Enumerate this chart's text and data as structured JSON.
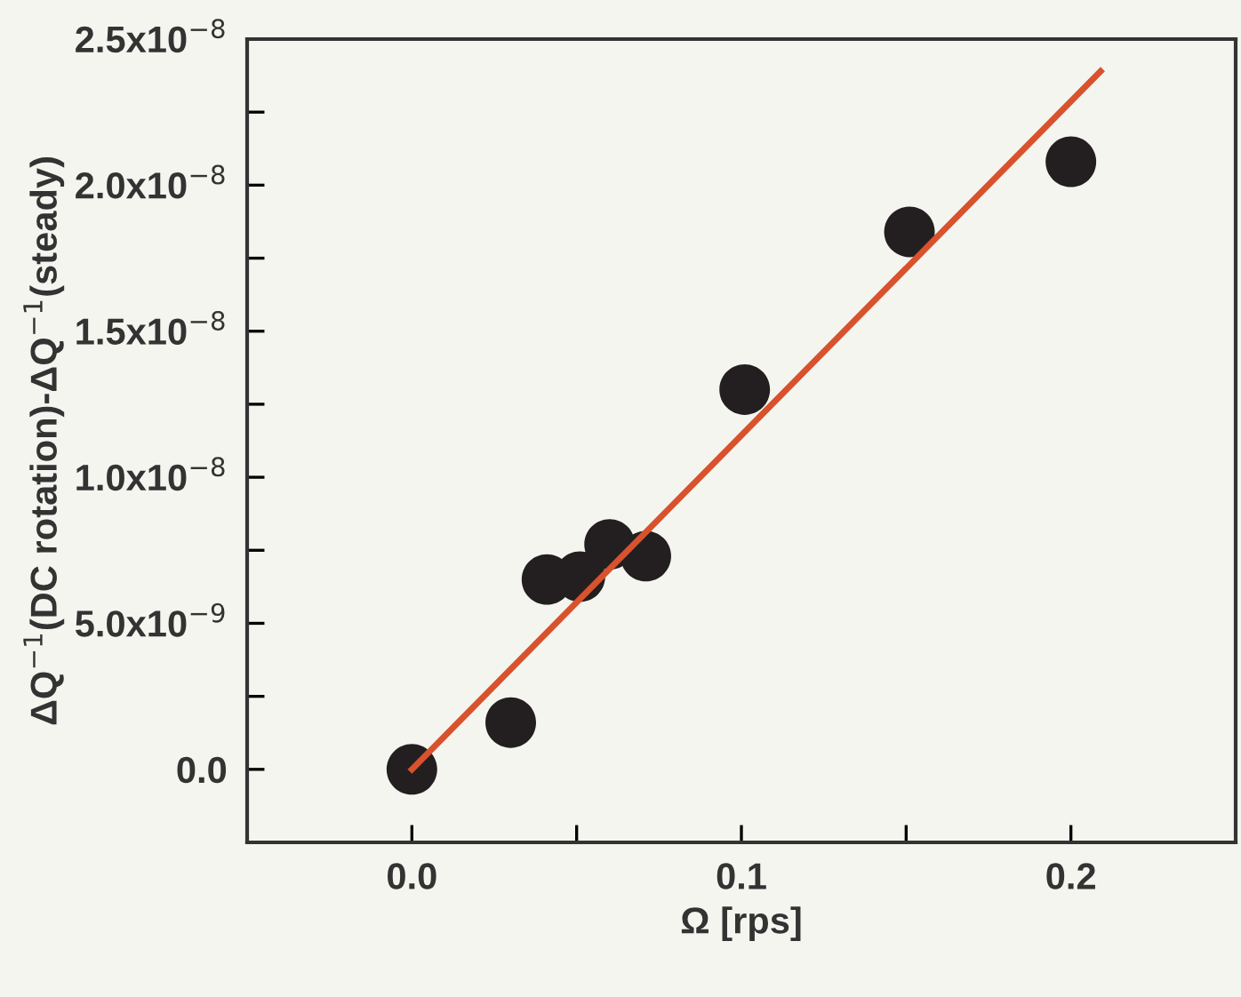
{
  "chart_data": {
    "type": "scatter",
    "xlabel": "Ω [rps]",
    "ylabel": "ΔQ$^{−1}$(DC rotation)-ΔQ$^{−1}$(steady)",
    "xlim": [
      -0.05,
      0.25
    ],
    "ylim": [
      -2.5e-09,
      2.5e-08
    ],
    "xticks": [
      {
        "value": 0.0,
        "label": "0.0"
      },
      {
        "value": 0.05,
        "label": null
      },
      {
        "value": 0.1,
        "label": "0.1"
      },
      {
        "value": 0.15,
        "label": null
      },
      {
        "value": 0.2,
        "label": "0.2"
      }
    ],
    "yticks": [
      {
        "value": 0.0,
        "label": "0.0"
      },
      {
        "value": 2.5e-09,
        "label": null
      },
      {
        "value": 5e-09,
        "label": "5.0x10$^{−9}$"
      },
      {
        "value": 7.5e-09,
        "label": null
      },
      {
        "value": 1e-08,
        "label": "1.0x10$^{−8}$"
      },
      {
        "value": 1.25e-08,
        "label": null
      },
      {
        "value": 1.5e-08,
        "label": "1.5x10$^{−8}$"
      },
      {
        "value": 1.75e-08,
        "label": null
      },
      {
        "value": 2e-08,
        "label": "2.0x10$^{−8}$"
      },
      {
        "value": 2.25e-08,
        "label": null
      },
      {
        "value": 2.5e-08,
        "label": "2.5x10$^{−8}$"
      }
    ],
    "grid": false,
    "series": [
      {
        "color": "#231f20",
        "marker": "circle",
        "x": [
          0.0,
          0.03,
          0.041,
          0.051,
          0.06,
          0.071,
          0.101,
          0.151,
          0.2
        ],
        "values": [
          0.0,
          1.6e-09,
          6.5e-09,
          6.6e-09,
          7.7e-09,
          7.3e-09,
          1.3e-08,
          1.84e-08,
          2.08e-08
        ]
      },
      {
        "type": "line",
        "color": "#d9522e",
        "x": [
          0.0,
          0.209
        ],
        "values": [
          0.0,
          2.39e-08
        ]
      }
    ]
  }
}
